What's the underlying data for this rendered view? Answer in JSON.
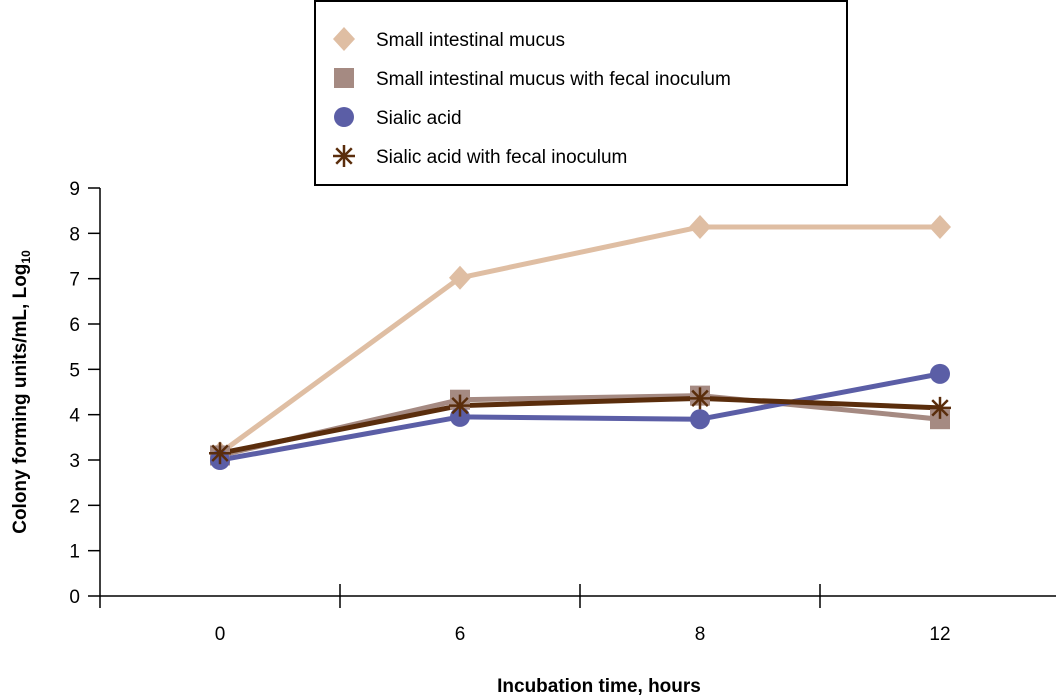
{
  "chart_data": {
    "type": "line",
    "categories": [
      "0",
      "6",
      "8",
      "12"
    ],
    "xlabel": "Incubation time, hours",
    "ylabel": "Colony forming units/mL, Log",
    "ylabel_subscript": "10",
    "ylim": [
      0,
      9
    ],
    "yticks": [
      "0",
      "1",
      "2",
      "3",
      "4",
      "5",
      "6",
      "7",
      "8",
      "9"
    ],
    "grid": false,
    "legend": "top-center",
    "series": [
      {
        "name": "Small intestinal mucus",
        "values": [
          3.15,
          7.02,
          8.14,
          8.14
        ],
        "color": "#dfbea3",
        "marker": "diamond"
      },
      {
        "name": "Small intestinal mucus with fecal inoculum",
        "values": [
          3.1,
          4.33,
          4.42,
          3.9
        ],
        "color": "#a58a82",
        "marker": "square"
      },
      {
        "name": "Sialic acid",
        "values": [
          3.0,
          3.95,
          3.9,
          4.9
        ],
        "color": "#5b5ea6",
        "marker": "circle"
      },
      {
        "name": "Sialic acid with fecal inoculum",
        "values": [
          3.15,
          4.2,
          4.36,
          4.15
        ],
        "color": "#5a2d0c",
        "marker": "asterisk"
      }
    ]
  }
}
